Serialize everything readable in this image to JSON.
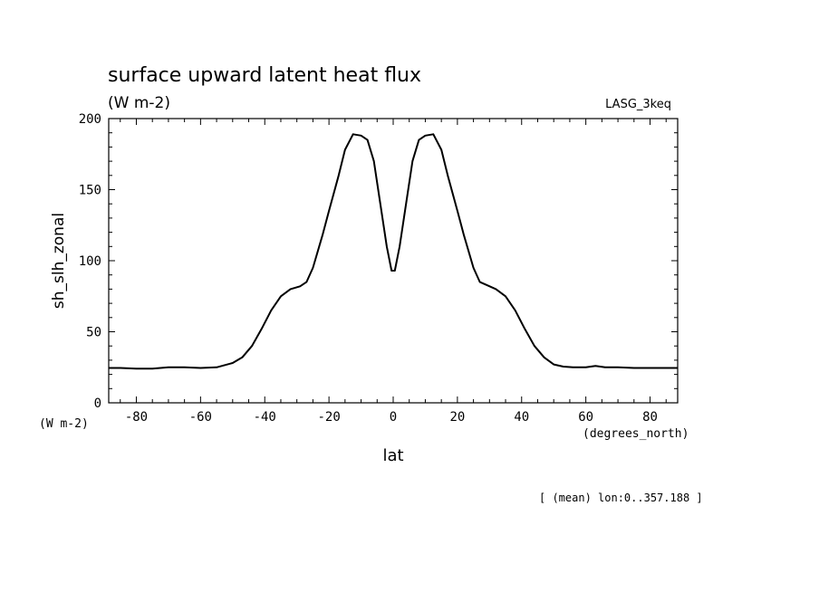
{
  "chart_data": {
    "type": "line",
    "title": "surface upward latent heat flux",
    "subtitle": "(W m-2)",
    "dataset_label": "LASG_3keq",
    "xlabel": "lat",
    "x_units": "(degrees_north)",
    "ylabel": "sh_slh_zonal",
    "y_units": "(W m-2)",
    "footnote": "[ (mean) lon:0..357.188 ]",
    "xlim": [
      -88.6,
      88.6
    ],
    "ylim": [
      0,
      200
    ],
    "x_ticks": [
      -80,
      -60,
      -40,
      -20,
      0,
      20,
      40,
      60,
      80
    ],
    "x_tick_labels": [
      "-80",
      "-60",
      "-40",
      "-20",
      "0",
      "20",
      "40",
      "60",
      "80"
    ],
    "y_ticks": [
      0,
      50,
      100,
      150,
      200
    ],
    "y_tick_labels": [
      "0",
      "50",
      "100",
      "150",
      "200"
    ],
    "grid": false,
    "legend": "none",
    "line_color": "#000000",
    "series": [
      {
        "x": [
          -88.6,
          -85,
          -80,
          -75,
          -70,
          -65,
          -60,
          -55,
          -50,
          -47,
          -44,
          -41,
          -38,
          -35,
          -32,
          -29,
          -27,
          -25,
          -22,
          -20,
          -17,
          -15,
          -12.5,
          -10,
          -8,
          -6,
          -4,
          -2,
          -0.5,
          0.5,
          2,
          4,
          6,
          8,
          10,
          12.5,
          15,
          17,
          20,
          22,
          25,
          27,
          29,
          32,
          35,
          38,
          41,
          44,
          47,
          50,
          53,
          56,
          60,
          63,
          66,
          70,
          75,
          80,
          85,
          88.6
        ],
        "y": [
          24.5,
          24.5,
          24,
          24,
          25,
          25,
          24.5,
          25,
          28,
          32,
          40,
          52,
          65,
          75,
          80,
          82,
          85,
          95,
          118,
          135,
          160,
          178,
          189,
          188,
          185,
          170,
          140,
          110,
          93,
          93,
          110,
          140,
          170,
          185,
          188,
          189,
          178,
          160,
          135,
          118,
          95,
          85,
          83,
          80,
          75,
          65,
          52,
          40,
          32,
          27,
          25.5,
          25,
          25,
          26,
          25,
          25,
          24.5,
          24.5,
          24.5,
          24.5
        ]
      }
    ]
  }
}
